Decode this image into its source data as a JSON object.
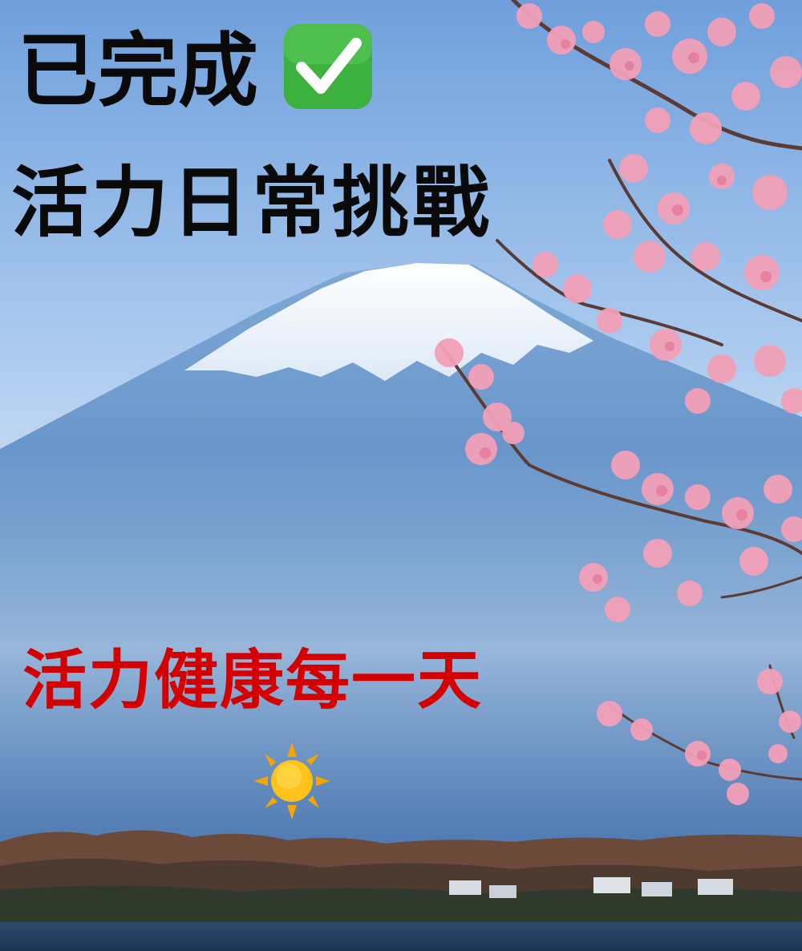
{
  "headline": {
    "completed": "已完成",
    "challenge": "活力日常挑戰",
    "slogan": "活力健康每一天"
  },
  "icons": [
    "check-mark-icon",
    "sun-icon"
  ],
  "colors": {
    "headline_text": "#0a0a0a",
    "slogan_text": "#d40000",
    "check_green": "#3db13d",
    "sky": "#86b4e6",
    "blossom": "#f2a0b8"
  }
}
